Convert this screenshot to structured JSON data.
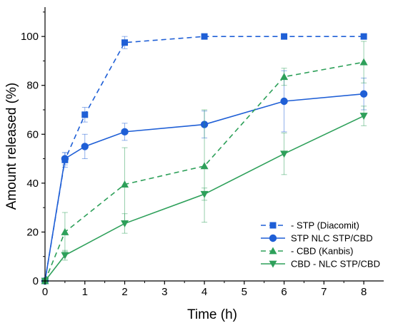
{
  "chart_data": {
    "type": "line",
    "xlabel": "Time (h)",
    "ylabel": "Amount released (%)",
    "xlim": [
      0,
      8.5
    ],
    "ylim": [
      0,
      112
    ],
    "xticks": [
      0,
      1,
      2,
      3,
      4,
      5,
      6,
      7,
      8
    ],
    "yticks": [
      0,
      20,
      40,
      60,
      80,
      100
    ],
    "grid": false,
    "legend_position": "bottom-right",
    "series": [
      {
        "name": "- STP (Diacomit)",
        "color": "#1f5fd6",
        "dash": true,
        "marker": "square",
        "points": [
          {
            "x": 0,
            "y": 0,
            "err": 0
          },
          {
            "x": 0.5,
            "y": 49.5,
            "err": 3
          },
          {
            "x": 1,
            "y": 68,
            "err": 3
          },
          {
            "x": 2,
            "y": 97.5,
            "err": 2.5
          },
          {
            "x": 4,
            "y": 100,
            "err": 0
          },
          {
            "x": 6,
            "y": 100,
            "err": 0
          },
          {
            "x": 8,
            "y": 100,
            "err": 0
          }
        ]
      },
      {
        "name": "STP NLC STP/CBD",
        "color": "#1f5fd6",
        "dash": false,
        "marker": "circle",
        "points": [
          {
            "x": 0,
            "y": 0,
            "err": 0
          },
          {
            "x": 0.5,
            "y": 50,
            "err": 2.5
          },
          {
            "x": 1,
            "y": 55,
            "err": 5
          },
          {
            "x": 2,
            "y": 61,
            "err": 3.5
          },
          {
            "x": 4,
            "y": 64,
            "err": 5.5
          },
          {
            "x": 6,
            "y": 73.5,
            "err": 12.5
          },
          {
            "x": 8,
            "y": 76.5,
            "err": 6.5
          }
        ]
      },
      {
        "name": "- CBD (Kanbis)",
        "color": "#2ea05a",
        "dash": true,
        "marker": "triangle-up",
        "points": [
          {
            "x": 0,
            "y": 0,
            "err": 0
          },
          {
            "x": 0.5,
            "y": 20,
            "err": 8
          },
          {
            "x": 2,
            "y": 39.5,
            "err": 15
          },
          {
            "x": 4,
            "y": 47,
            "err": 23
          },
          {
            "x": 6,
            "y": 83.5,
            "err": 3.5
          },
          {
            "x": 8,
            "y": 89.5,
            "err": 8.5
          }
        ]
      },
      {
        "name": "CBD - NLC STP/CBD",
        "color": "#2ea05a",
        "dash": false,
        "marker": "triangle-down",
        "points": [
          {
            "x": 0,
            "y": 0,
            "err": 0
          },
          {
            "x": 0.5,
            "y": 10.5,
            "err": 2
          },
          {
            "x": 2,
            "y": 23.5,
            "err": 4
          },
          {
            "x": 4,
            "y": 35.5,
            "err": 2.5
          },
          {
            "x": 6,
            "y": 52,
            "err": 8.5
          },
          {
            "x": 8,
            "y": 67.5,
            "err": 4
          }
        ]
      }
    ]
  }
}
